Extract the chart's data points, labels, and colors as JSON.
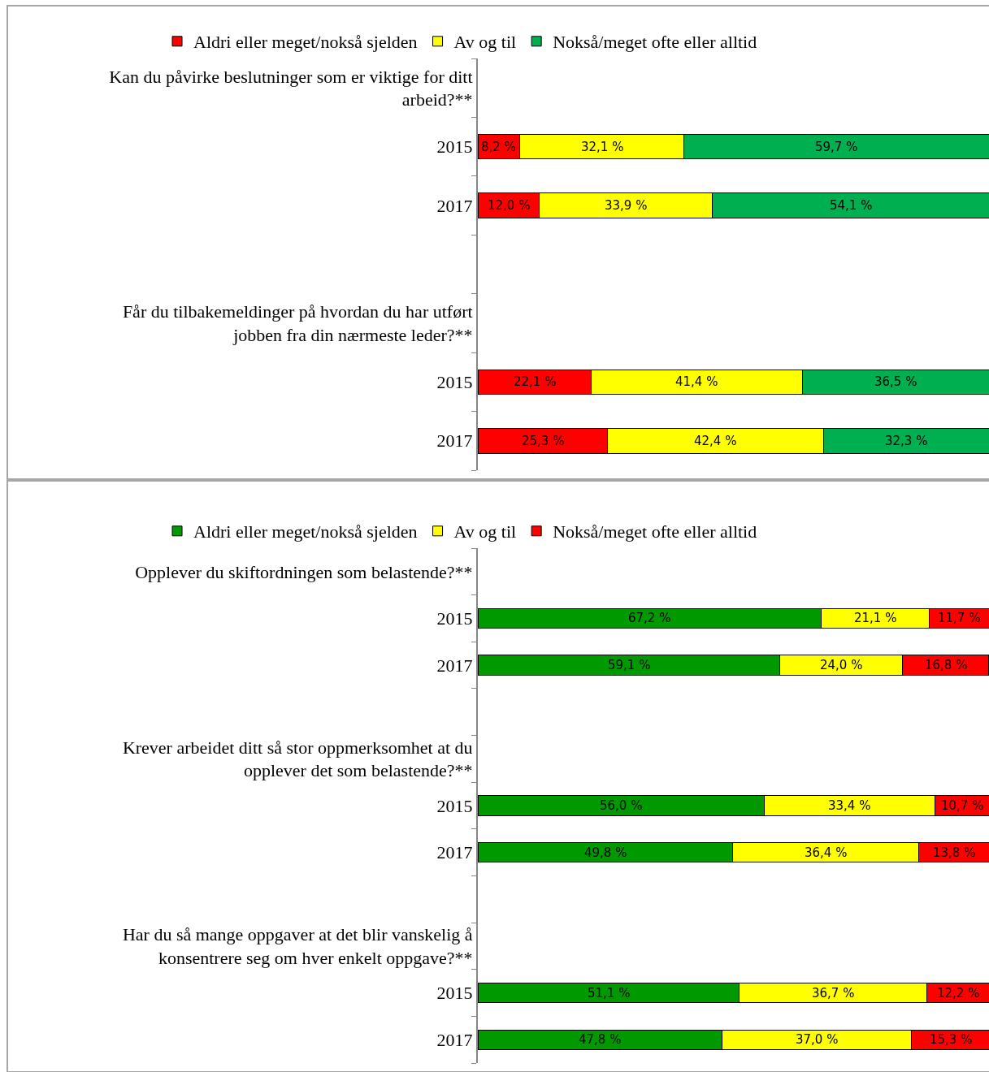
{
  "chart_data": [
    {
      "type": "bar",
      "orientation": "horizontal",
      "stacked": true,
      "legend": "top",
      "grid": false,
      "tick_labels": "y",
      "xlim": [
        0,
        100
      ],
      "categories": [
        "Kan du påvirke beslutninger som er viktige for ditt arbeid?**",
        "2015",
        "2017",
        null,
        "Får du tilbakemeldinger på hvordan du har utført jobben fra din nærmeste leder?**",
        "2015",
        "2017"
      ],
      "series": [
        {
          "name": "Aldri eller meget/nokså sjelden",
          "color": "#ff0000",
          "values": [
            null,
            8.2,
            12.0,
            null,
            null,
            22.1,
            25.3
          ],
          "value_labels": [
            null,
            "8,2 %",
            "12,0 %",
            null,
            null,
            "22,1 %",
            "25,3 %"
          ]
        },
        {
          "name": "Av og til",
          "color": "#ffff00",
          "values": [
            null,
            32.1,
            33.9,
            null,
            null,
            41.4,
            42.4
          ],
          "value_labels": [
            null,
            "32,1 %",
            "33,9 %",
            null,
            null,
            "41,4 %",
            "42,4 %"
          ]
        },
        {
          "name": "Nokså/meget ofte eller alltid",
          "color": "#00b050",
          "values": [
            null,
            59.7,
            54.1,
            null,
            null,
            36.5,
            32.3
          ],
          "value_labels": [
            null,
            "59,7 %",
            "54,1 %",
            null,
            null,
            "36,5 %",
            "32,3 %"
          ]
        }
      ]
    },
    {
      "type": "bar",
      "orientation": "horizontal",
      "stacked": true,
      "legend": "top",
      "grid": false,
      "tick_labels": "y",
      "xlim": [
        0,
        100
      ],
      "categories": [
        "Opplever du skiftordningen som belastende?**",
        "2015",
        "2017",
        null,
        "Krever arbeidet ditt så stor oppmerksomhet at du opplever det som belastende?**",
        "2015",
        "2017",
        null,
        "Har du så mange oppgaver at det blir vanskelig å konsentrere seg om hver enkelt oppgave?**",
        "2015",
        "2017"
      ],
      "series": [
        {
          "name": "Aldri eller meget/nokså sjelden",
          "color": "#009900",
          "values": [
            null,
            67.2,
            59.1,
            null,
            null,
            56.0,
            49.8,
            null,
            null,
            51.1,
            47.8
          ],
          "value_labels": [
            null,
            "67,2 %",
            "59,1 %",
            null,
            null,
            "56,0 %",
            "49,8 %",
            null,
            null,
            "51,1 %",
            "47,8 %"
          ]
        },
        {
          "name": "Av og til",
          "color": "#ffff00",
          "values": [
            null,
            21.1,
            24.0,
            null,
            null,
            33.4,
            36.4,
            null,
            null,
            36.7,
            37.0
          ],
          "value_labels": [
            null,
            "21,1 %",
            "24,0 %",
            null,
            null,
            "33,4 %",
            "36,4 %",
            null,
            null,
            "36,7 %",
            "37,0 %"
          ]
        },
        {
          "name": "Nokså/meget ofte eller alltid",
          "color": "#ff0000",
          "values": [
            null,
            11.7,
            16.8,
            null,
            null,
            10.7,
            13.8,
            null,
            null,
            12.2,
            15.3
          ],
          "value_labels": [
            null,
            "11,7 %",
            "16,8 %",
            null,
            null,
            "10,7 %",
            "13,8 %",
            null,
            null,
            "12,2 %",
            "15,3 %"
          ]
        }
      ]
    }
  ]
}
